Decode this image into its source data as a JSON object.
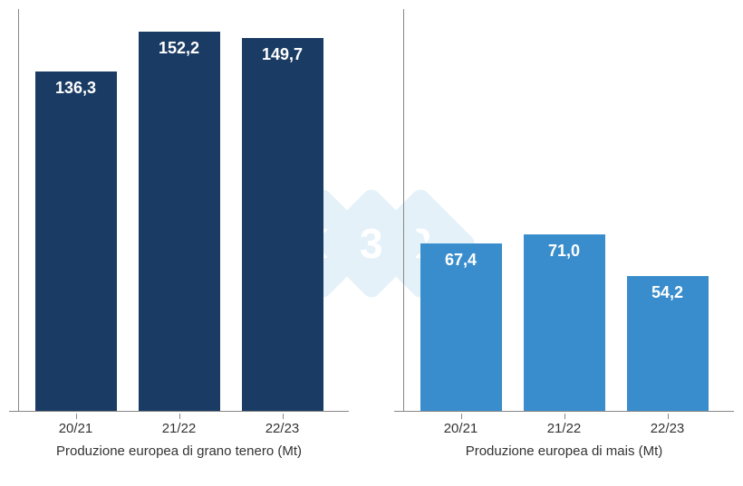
{
  "background_color": "#ffffff",
  "axis_color": "#888888",
  "text_color": "#333333",
  "watermark": {
    "text": "3",
    "color": "#5aa9dd",
    "text_color": "#ffffff"
  },
  "chart_left": {
    "type": "bar",
    "axis_label": "Produzione europea di grano tenero (Mt)",
    "bar_color": "#1a3b63",
    "value_label_color": "#ffffff",
    "value_fontsize": 18,
    "tick_fontsize": 15,
    "axis_label_fontsize": 15,
    "ymax": 160,
    "categories": [
      "20/21",
      "21/22",
      "22/23"
    ],
    "values": [
      136.3,
      152.2,
      149.7
    ],
    "value_labels": [
      "136,3",
      "152,2",
      "149,7"
    ]
  },
  "chart_right": {
    "type": "bar",
    "axis_label": "Produzione europea di mais (Mt)",
    "bar_color": "#3a8dcc",
    "value_label_color": "#ffffff",
    "value_fontsize": 18,
    "tick_fontsize": 15,
    "axis_label_fontsize": 15,
    "ymax": 160,
    "categories": [
      "20/21",
      "21/22",
      "22/23"
    ],
    "values": [
      67.4,
      71.0,
      54.2
    ],
    "value_labels": [
      "67,4",
      "71,0",
      "54,2"
    ]
  }
}
